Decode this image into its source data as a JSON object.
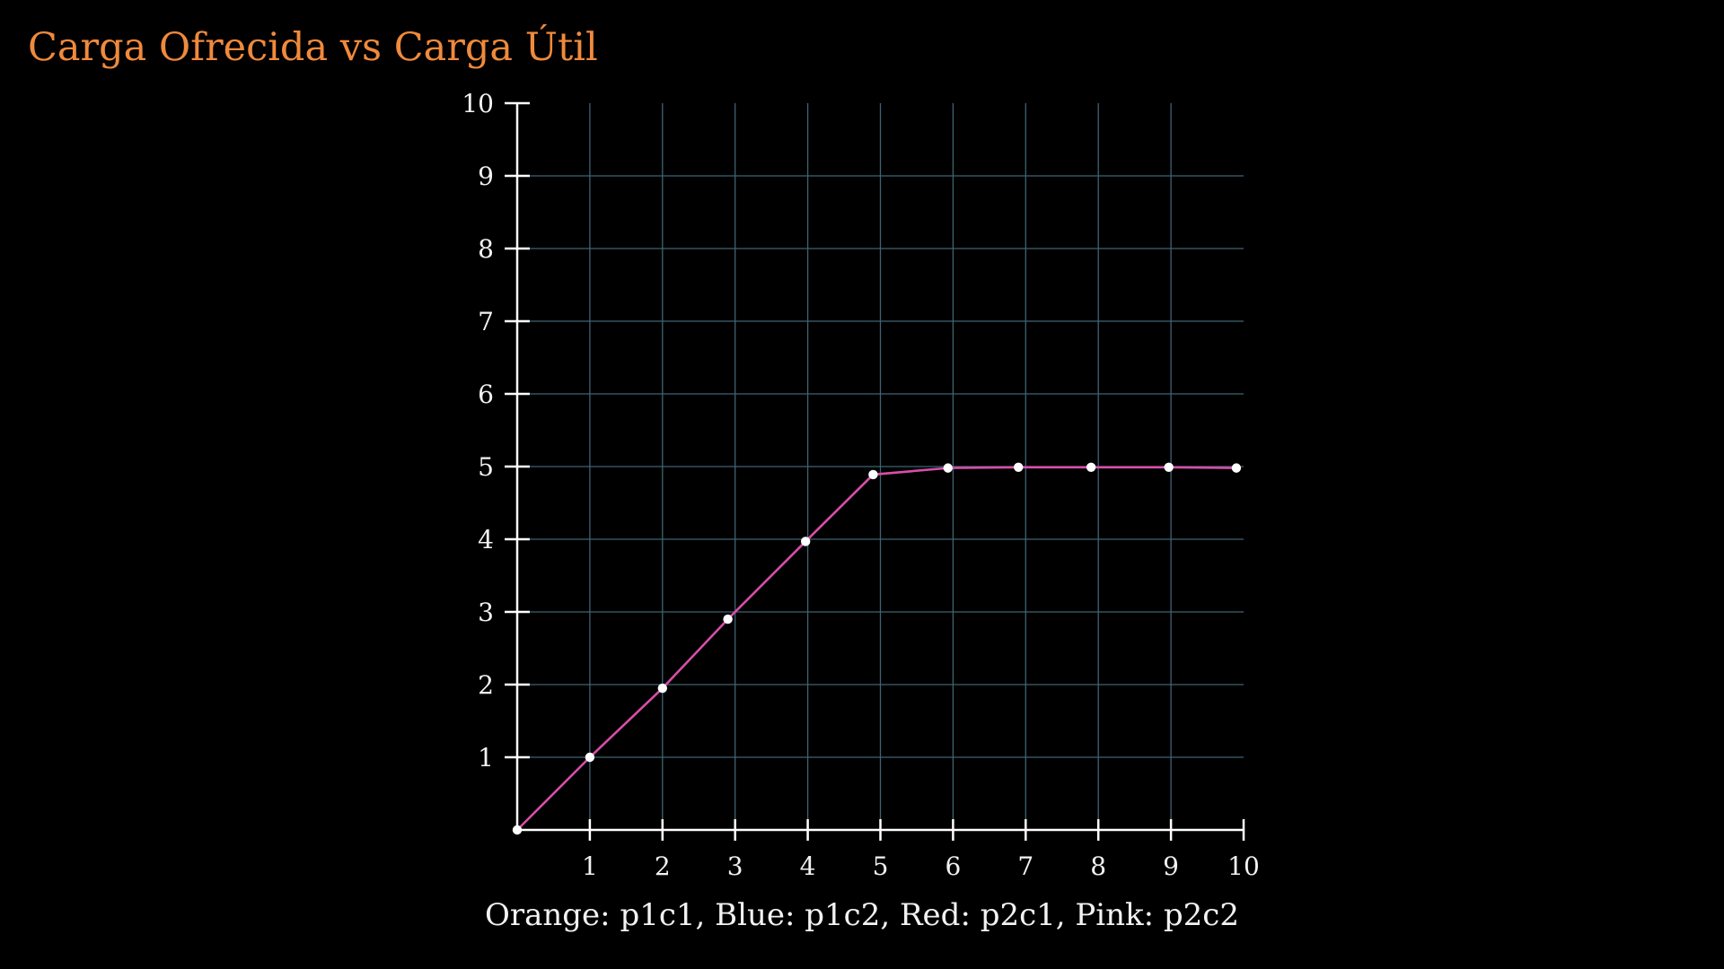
{
  "chart_data": {
    "type": "line",
    "title": "Carga Ofrecida vs Carga Útil",
    "caption": "Orange: p1c1, Blue: p1c2, Red: p2c1, Pink: p2c2",
    "xlabel": "",
    "ylabel": "",
    "xlim": [
      0,
      10
    ],
    "ylim": [
      0,
      10
    ],
    "x_ticks": [
      1,
      2,
      3,
      4,
      5,
      6,
      7,
      8,
      9,
      10
    ],
    "y_ticks": [
      1,
      2,
      3,
      4,
      5,
      6,
      7,
      8,
      9,
      10
    ],
    "grid": true,
    "series": [
      {
        "color": "#d64fa8",
        "marker_color": "#ffffff",
        "x": [
          0,
          1,
          2,
          2.9,
          3.97,
          4.9,
          5.93,
          6.9,
          7.9,
          8.97,
          9.9
        ],
        "y": [
          0,
          1.0,
          1.95,
          2.9,
          3.97,
          4.89,
          4.98,
          4.99,
          4.99,
          4.99,
          4.98
        ]
      }
    ]
  },
  "colors": {
    "background": "#000000",
    "title": "#f08a3c",
    "axis": "#ffffff",
    "grid": "#3f6373",
    "text": "#f2f2f2"
  }
}
